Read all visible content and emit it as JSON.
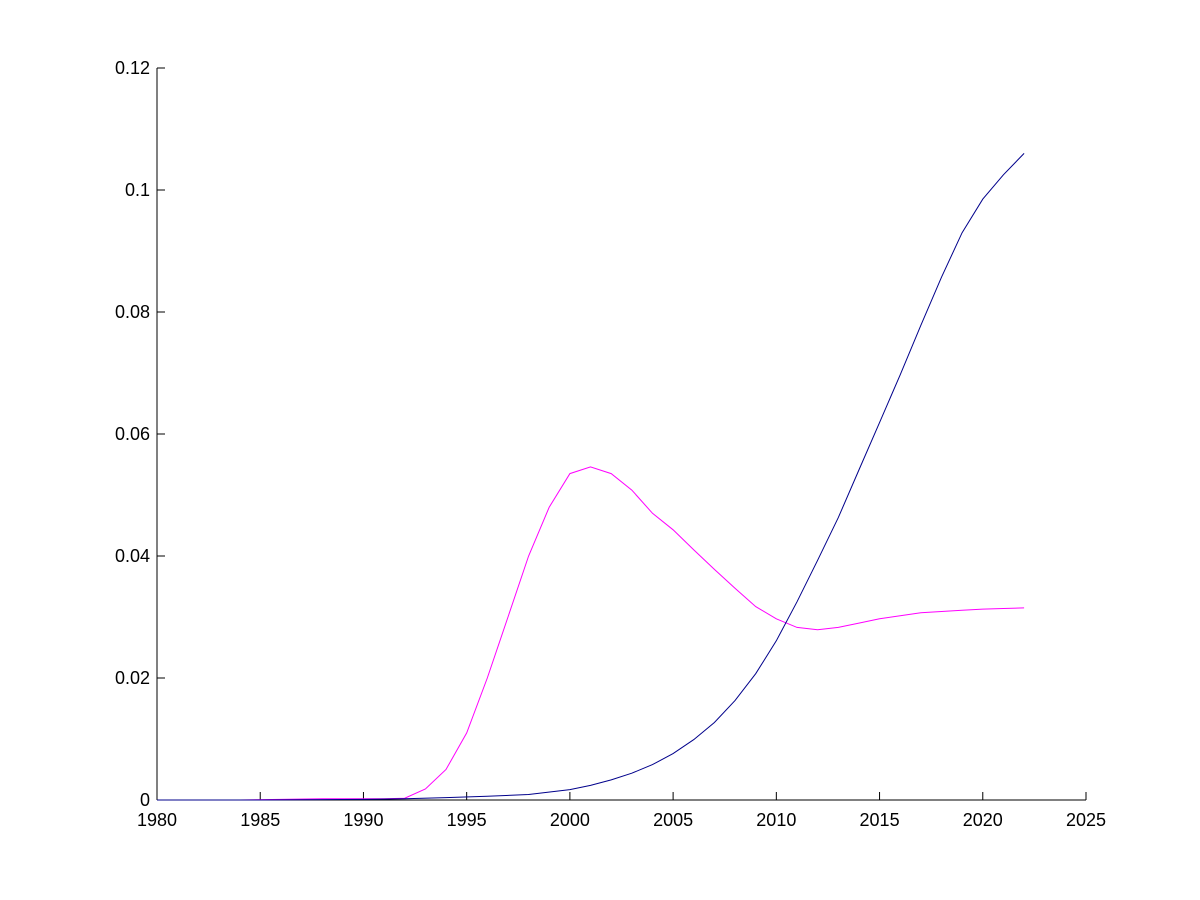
{
  "chart_data": {
    "type": "line",
    "title": "",
    "xlabel": "",
    "ylabel": "",
    "xlim": [
      1980,
      2025
    ],
    "ylim": [
      0,
      0.12
    ],
    "grid": false,
    "legend": "none",
    "x_ticks": [
      "1980",
      "1985",
      "1990",
      "1995",
      "2000",
      "2005",
      "2010",
      "2015",
      "2020",
      "2025"
    ],
    "y_ticks": [
      "0",
      "0.02",
      "0.04",
      "0.06",
      "0.08",
      "0.1",
      "0.12"
    ],
    "series": [
      {
        "color": "#ff00ff",
        "x": [
          1980,
          1982,
          1984,
          1986,
          1988,
          1990,
          1991,
          1992,
          1993,
          1994,
          1995,
          1996,
          1997,
          1998,
          1999,
          2000,
          2001,
          2002,
          2003,
          2004,
          2005,
          2006,
          2007,
          2008,
          2009,
          2010,
          2011,
          2012,
          2013,
          2014,
          2015,
          2016,
          2017,
          2018,
          2019,
          2020,
          2021,
          2022
        ],
        "y": [
          0,
          0,
          0,
          0.0001,
          0.0002,
          0.0002,
          0.0002,
          0.0003,
          0.0018,
          0.005,
          0.011,
          0.02,
          0.03,
          0.04,
          0.048,
          0.0535,
          0.0546,
          0.0535,
          0.0508,
          0.047,
          0.0443,
          0.041,
          0.0378,
          0.0347,
          0.0317,
          0.0297,
          0.0283,
          0.0279,
          0.0283,
          0.029,
          0.0297,
          0.0302,
          0.0307,
          0.0309,
          0.0311,
          0.0313,
          0.0314,
          0.0315
        ]
      },
      {
        "color": "#00008b",
        "x": [
          1980,
          1985,
          1990,
          1992,
          1994,
          1996,
          1998,
          2000,
          2001,
          2002,
          2003,
          2004,
          2005,
          2006,
          2007,
          2008,
          2009,
          2010,
          2011,
          2012,
          2013,
          2014,
          2015,
          2016,
          2017,
          2018,
          2019,
          2020,
          2021,
          2022
        ],
        "y": [
          0,
          0,
          0.0001,
          0.0002,
          0.0004,
          0.0006,
          0.0009,
          0.0017,
          0.0024,
          0.0033,
          0.0044,
          0.0058,
          0.0076,
          0.0099,
          0.0127,
          0.0163,
          0.0207,
          0.0261,
          0.0325,
          0.0393,
          0.0463,
          0.0541,
          0.0619,
          0.0697,
          0.0778,
          0.0857,
          0.093,
          0.0985,
          0.1025,
          0.106
        ]
      }
    ]
  }
}
